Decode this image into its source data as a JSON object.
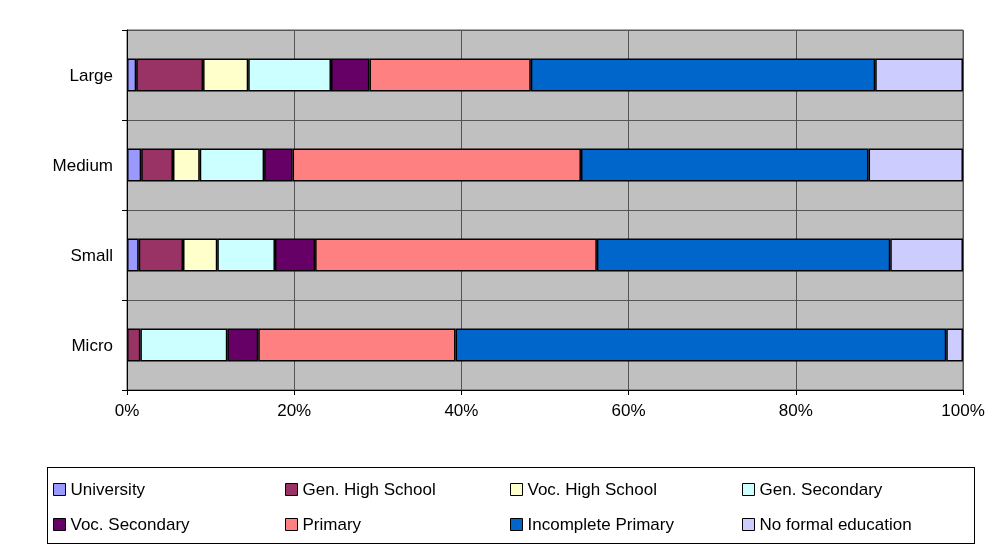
{
  "chart_data": {
    "type": "bar",
    "orientation": "horizontal",
    "stacked": true,
    "categories": [
      "Large",
      "Medium",
      "Small",
      "Micro"
    ],
    "series": [
      {
        "name": "University",
        "color": "#9999ff",
        "values": [
          1.1,
          1.7,
          1.4,
          0
        ]
      },
      {
        "name": "Gen. High School",
        "color": "#993366",
        "values": [
          8.0,
          3.8,
          5.3,
          1.6
        ]
      },
      {
        "name": "Voc. High School",
        "color": "#ffffcc",
        "values": [
          5.4,
          3.2,
          4.1,
          0
        ]
      },
      {
        "name": "Gen. Secondary",
        "color": "#ccffff",
        "values": [
          9.9,
          7.7,
          6.9,
          10.4
        ]
      },
      {
        "name": "Voc. Secondary",
        "color": "#660066",
        "values": [
          4.6,
          3.4,
          4.8,
          3.7
        ]
      },
      {
        "name": "Primary",
        "color": "#ff8080",
        "values": [
          19.3,
          34.5,
          33.7,
          23.6
        ]
      },
      {
        "name": "Incomplete Primary",
        "color": "#0066cc",
        "values": [
          41.2,
          34.4,
          35.1,
          58.7
        ]
      },
      {
        "name": "No formal education",
        "color": "#ccccff",
        "values": [
          10.5,
          11.3,
          8.7,
          2.0
        ]
      }
    ],
    "xlim": [
      0,
      100
    ],
    "xticks": [
      {
        "value": 0,
        "label": "0%"
      },
      {
        "value": 20,
        "label": "20%"
      },
      {
        "value": 40,
        "label": "40%"
      },
      {
        "value": 60,
        "label": "60%"
      },
      {
        "value": 80,
        "label": "80%"
      },
      {
        "value": 100,
        "label": "100%"
      }
    ],
    "grid": true,
    "legend": "bottom"
  }
}
